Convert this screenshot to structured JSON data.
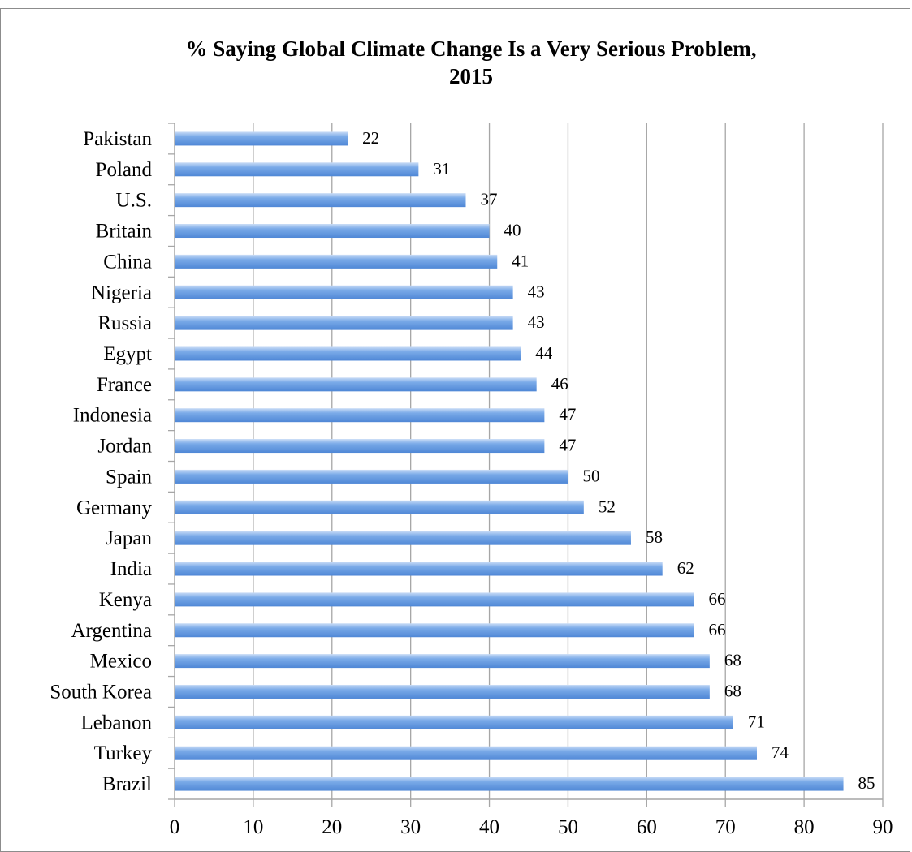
{
  "chart_data": {
    "type": "bar",
    "orientation": "horizontal",
    "title_line1": "% Saying Global Climate Change Is a Very Serious Problem,",
    "title_line2": "2015",
    "xlabel": "",
    "ylabel": "",
    "categories": [
      "Pakistan",
      "Poland",
      "U.S.",
      "Britain",
      "China",
      "Nigeria",
      "Russia",
      "Egypt",
      "France",
      "Indonesia",
      "Jordan",
      "Spain",
      "Germany",
      "Japan",
      "India",
      "Kenya",
      "Argentina",
      "Mexico",
      "South Korea",
      "Lebanon",
      "Turkey",
      "Brazil"
    ],
    "values": [
      22,
      31,
      37,
      40,
      41,
      43,
      43,
      44,
      46,
      47,
      47,
      50,
      52,
      58,
      62,
      66,
      66,
      68,
      68,
      71,
      74,
      85
    ],
    "xlim": [
      0,
      90
    ],
    "xticks": [
      "0",
      "10",
      "20",
      "30",
      "40",
      "50",
      "60",
      "70",
      "80",
      "90"
    ],
    "grid": "vertical",
    "legend": "none",
    "bar_color": "#7aaae8",
    "bar_color_light": "#c9dcf6",
    "bar_color_dark": "#4f87d6",
    "grid_color": "#a6a6a6"
  }
}
